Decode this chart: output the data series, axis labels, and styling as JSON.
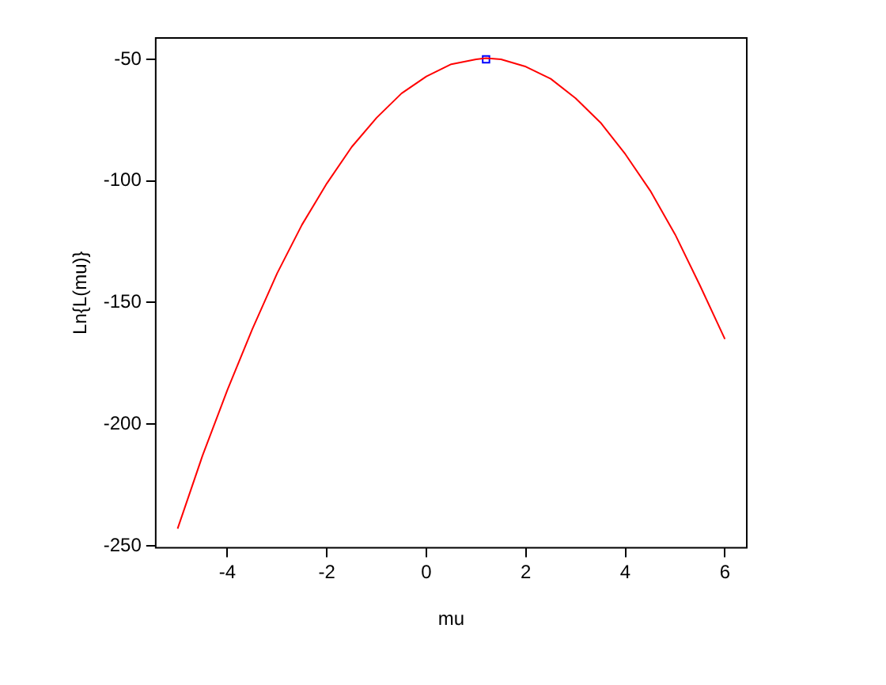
{
  "chart_data": {
    "type": "line",
    "xlabel": "mu",
    "ylabel": "Ln{L(mu)}",
    "xlim": [
      -5.44,
      6.44
    ],
    "ylim": [
      -250.8,
      -41.2
    ],
    "xticks": [
      -4,
      -2,
      0,
      2,
      4,
      6
    ],
    "yticks": [
      -250,
      -200,
      -150,
      -100,
      -50
    ],
    "grid": false,
    "legend": false,
    "series": [
      {
        "color": "#ff0000",
        "marker": "none",
        "line_style": "solid",
        "x": [
          -5,
          -4.5,
          -4,
          -3.5,
          -3,
          -2.5,
          -2,
          -1.5,
          -1,
          -0.5,
          0,
          0.5,
          1,
          1.2,
          1.5,
          2,
          2.5,
          3,
          3.5,
          4,
          4.5,
          5,
          5.5,
          6
        ],
        "values": [
          -243,
          -213,
          -186,
          -161,
          -138,
          -118,
          -101,
          -86,
          -74,
          -64,
          -57,
          -52,
          -50,
          -49.5,
          -50,
          -53,
          -58,
          -66,
          -76,
          -89,
          -104,
          -122,
          -143,
          -165
        ]
      },
      {
        "type": "scatter",
        "color": "#0000ff",
        "marker": "square",
        "x": [
          1.2
        ],
        "values": [
          -50
        ]
      }
    ]
  }
}
